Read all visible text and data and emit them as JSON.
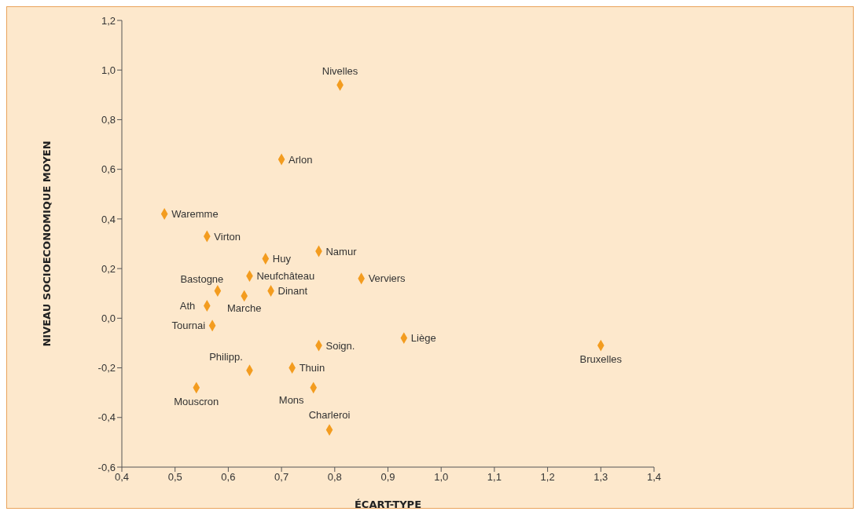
{
  "chart_data": {
    "type": "scatter",
    "xlabel": "ÉCART-TYPE",
    "ylabel": "NIVEAU SOCIOECONOMIQUE MOYEN",
    "xlim": [
      0.4,
      1.4
    ],
    "xticks": [
      {
        "value": 0.4,
        "label": "0,4"
      },
      {
        "value": 0.5,
        "label": "0,5"
      },
      {
        "value": 0.6,
        "label": "0,6"
      },
      {
        "value": 0.7,
        "label": "0,7"
      },
      {
        "value": 0.8,
        "label": "0,8"
      },
      {
        "value": 0.9,
        "label": "0,9"
      },
      {
        "value": 1.0,
        "label": "1,0"
      },
      {
        "value": 1.1,
        "label": "1,1"
      },
      {
        "value": 1.2,
        "label": "1,2"
      },
      {
        "value": 1.3,
        "label": "1,3"
      },
      {
        "value": 1.4,
        "label": "1,4"
      }
    ],
    "ylim": [
      -0.6,
      1.2
    ],
    "yticks": [
      {
        "value": -0.6,
        "label": "-0,6"
      },
      {
        "value": -0.4,
        "label": "-0,4"
      },
      {
        "value": -0.2,
        "label": "-0,2"
      },
      {
        "value": 0.0,
        "label": "0,0"
      },
      {
        "value": 0.2,
        "label": "0,2"
      },
      {
        "value": 0.4,
        "label": "0,4"
      },
      {
        "value": 0.6,
        "label": "0,6"
      },
      {
        "value": 0.8,
        "label": "0,8"
      },
      {
        "value": 1.0,
        "label": "1,0"
      },
      {
        "value": 1.2,
        "label": "1,2"
      }
    ],
    "grid": false,
    "legend": false,
    "marker": "diamond",
    "series": [
      {
        "color": "#f39c1f",
        "x": [
          0.81,
          0.7,
          0.48,
          0.56,
          0.67,
          0.77,
          0.64,
          0.85,
          0.58,
          0.68,
          0.63,
          0.56,
          0.57,
          0.93,
          0.77,
          1.3,
          0.64,
          0.72,
          0.76,
          0.54,
          0.79
        ],
        "values": [
          0.94,
          0.64,
          0.42,
          0.33,
          0.24,
          0.27,
          0.17,
          0.16,
          0.11,
          0.11,
          0.09,
          0.05,
          -0.03,
          -0.08,
          -0.11,
          -0.11,
          -0.21,
          -0.2,
          -0.28,
          -0.28,
          -0.45
        ]
      }
    ],
    "annotations": [
      {
        "text": "Nivelles",
        "x": 0.81,
        "y": 0.94
      },
      {
        "text": "Arlon",
        "x": 0.7,
        "y": 0.64
      },
      {
        "text": "Waremme",
        "x": 0.48,
        "y": 0.42
      },
      {
        "text": "Virton",
        "x": 0.56,
        "y": 0.33
      },
      {
        "text": "Huy",
        "x": 0.67,
        "y": 0.24
      },
      {
        "text": "Namur",
        "x": 0.77,
        "y": 0.27
      },
      {
        "text": "Neufchâteau",
        "x": 0.64,
        "y": 0.17
      },
      {
        "text": "Verviers",
        "x": 0.85,
        "y": 0.16
      },
      {
        "text": "Bastogne",
        "x": 0.58,
        "y": 0.11
      },
      {
        "text": "Dinant",
        "x": 0.68,
        "y": 0.11
      },
      {
        "text": "Marche",
        "x": 0.63,
        "y": 0.09
      },
      {
        "text": "Ath",
        "x": 0.56,
        "y": 0.05
      },
      {
        "text": "Tournai",
        "x": 0.57,
        "y": -0.03
      },
      {
        "text": "Liège",
        "x": 0.93,
        "y": -0.08
      },
      {
        "text": "Soign.",
        "x": 0.77,
        "y": -0.11
      },
      {
        "text": "Bruxelles",
        "x": 1.3,
        "y": -0.11
      },
      {
        "text": "Philipp.",
        "x": 0.64,
        "y": -0.21
      },
      {
        "text": "Thuin",
        "x": 0.72,
        "y": -0.2
      },
      {
        "text": "Mons",
        "x": 0.76,
        "y": -0.28
      },
      {
        "text": "Mouscron",
        "x": 0.54,
        "y": -0.28
      },
      {
        "text": "Charleroi",
        "x": 0.79,
        "y": -0.45
      }
    ]
  }
}
